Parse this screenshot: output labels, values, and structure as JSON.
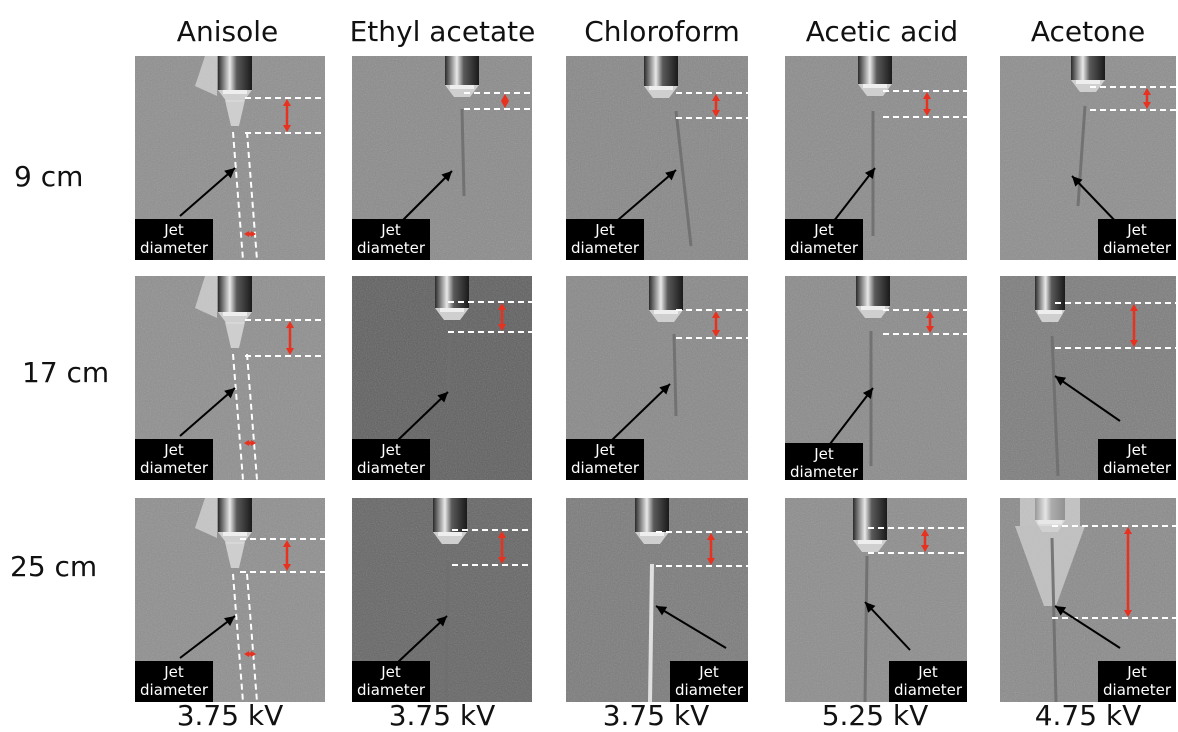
{
  "columns": [
    {
      "solvent": "Anisole",
      "voltage": "3.75 kV"
    },
    {
      "solvent": "Ethyl acetate",
      "voltage": "3.75 kV"
    },
    {
      "solvent": "Chloroform",
      "voltage": "3.75 kV"
    },
    {
      "solvent": "Acetic acid",
      "voltage": "5.25 kV"
    },
    {
      "solvent": "Acetone",
      "voltage": "4.75 kV"
    }
  ],
  "rows": [
    {
      "distance": "9 cm"
    },
    {
      "distance": "17 cm"
    },
    {
      "distance": "25 cm"
    }
  ],
  "jet_label": {
    "line1": "Jet",
    "line2": "diameter"
  },
  "colors": {
    "measurement_arrow": "#e8311f",
    "guide_line": "#ffffff",
    "label_bg": "#000000",
    "pointer_arrow": "#000000"
  }
}
